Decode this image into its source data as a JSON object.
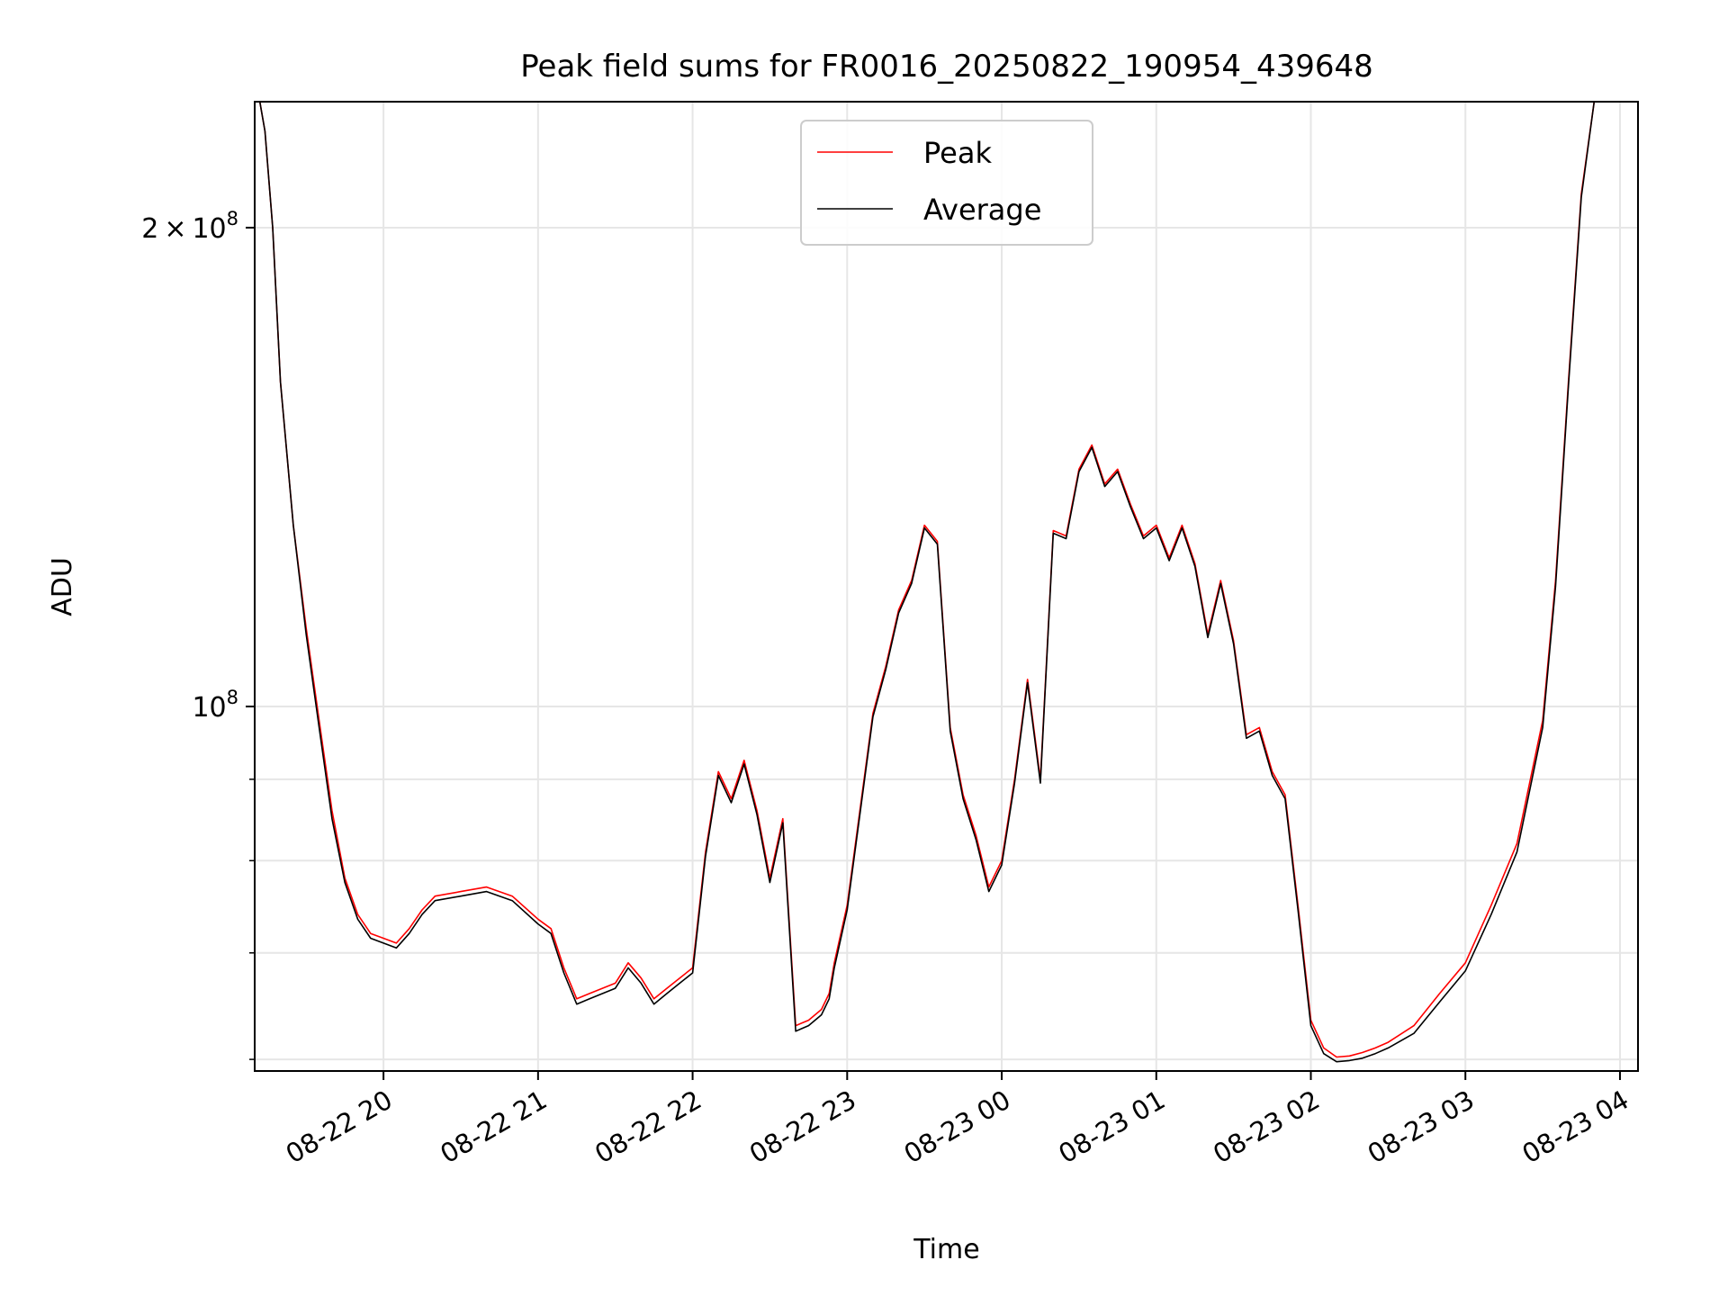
{
  "chart_data": {
    "type": "line",
    "title": "Peak field sums for FR0016_20250822_190954_439648",
    "xlabel": "Time",
    "ylabel": "ADU",
    "yscale": "log",
    "ylim": [
      59000000,
      240000000
    ],
    "xlim": [
      "2025-08-22 19:10",
      "2025-08-23 04:07"
    ],
    "x_ticks": [
      "08-22 20",
      "08-22 21",
      "08-22 22",
      "08-22 23",
      "08-23 00",
      "08-23 01",
      "08-23 02",
      "08-23 03",
      "08-23 04"
    ],
    "y_tick_labels": [
      {
        "base": "2",
        "times": "×",
        "mantissa": "10",
        "exp": "8",
        "value": 200000000
      },
      {
        "base": "",
        "times": "",
        "mantissa": "10",
        "exp": "8",
        "value": 100000000
      }
    ],
    "y_minor_ticks": [
      60000000,
      70000000,
      80000000,
      90000000
    ],
    "grid": true,
    "legend_position": "top-center",
    "colors": {
      "peak": "#ff0000",
      "average": "#000000"
    },
    "series": [
      {
        "name": "Peak",
        "x": [
          "2025-08-22 19:10",
          "2025-08-22 19:12",
          "2025-08-22 19:14",
          "2025-08-22 19:17",
          "2025-08-22 19:20",
          "2025-08-22 19:25",
          "2025-08-22 19:30",
          "2025-08-22 19:35",
          "2025-08-22 19:40",
          "2025-08-22 19:45",
          "2025-08-22 19:50",
          "2025-08-22 19:55",
          "2025-08-22 20:00",
          "2025-08-22 20:05",
          "2025-08-22 20:10",
          "2025-08-22 20:15",
          "2025-08-22 20:20",
          "2025-08-22 20:30",
          "2025-08-22 20:40",
          "2025-08-22 20:50",
          "2025-08-22 21:00",
          "2025-08-22 21:05",
          "2025-08-22 21:10",
          "2025-08-22 21:15",
          "2025-08-22 21:20",
          "2025-08-22 21:30",
          "2025-08-22 21:35",
          "2025-08-22 21:40",
          "2025-08-22 21:45",
          "2025-08-22 21:50",
          "2025-08-22 21:55",
          "2025-08-22 22:00",
          "2025-08-22 22:05",
          "2025-08-22 22:10",
          "2025-08-22 22:15",
          "2025-08-22 22:20",
          "2025-08-22 22:25",
          "2025-08-22 22:30",
          "2025-08-22 22:35",
          "2025-08-22 22:40",
          "2025-08-22 22:45",
          "2025-08-22 22:50",
          "2025-08-22 22:53",
          "2025-08-22 22:55",
          "2025-08-22 23:00",
          "2025-08-22 23:10",
          "2025-08-22 23:15",
          "2025-08-22 23:20",
          "2025-08-22 23:25",
          "2025-08-22 23:30",
          "2025-08-22 23:35",
          "2025-08-22 23:40",
          "2025-08-22 23:45",
          "2025-08-22 23:50",
          "2025-08-22 23:55",
          "2025-08-23 00:00",
          "2025-08-23 00:05",
          "2025-08-23 00:10",
          "2025-08-23 00:15",
          "2025-08-23 00:20",
          "2025-08-23 00:25",
          "2025-08-23 00:30",
          "2025-08-23 00:35",
          "2025-08-23 00:40",
          "2025-08-23 00:45",
          "2025-08-23 00:50",
          "2025-08-23 00:55",
          "2025-08-23 01:00",
          "2025-08-23 01:05",
          "2025-08-23 01:10",
          "2025-08-23 01:15",
          "2025-08-23 01:20",
          "2025-08-23 01:25",
          "2025-08-23 01:30",
          "2025-08-23 01:35",
          "2025-08-23 01:40",
          "2025-08-23 01:45",
          "2025-08-23 01:50",
          "2025-08-23 01:55",
          "2025-08-23 02:00",
          "2025-08-23 02:05",
          "2025-08-23 02:10",
          "2025-08-23 02:15",
          "2025-08-23 02:20",
          "2025-08-23 02:25",
          "2025-08-23 02:30",
          "2025-08-23 02:40",
          "2025-08-23 02:50",
          "2025-08-23 03:00",
          "2025-08-23 03:10",
          "2025-08-23 03:20",
          "2025-08-23 03:30",
          "2025-08-23 03:35",
          "2025-08-23 03:40",
          "2025-08-23 03:45",
          "2025-08-23 03:50",
          "2025-08-23 03:55",
          "2025-08-23 04:00"
        ],
        "y": [
          240000000,
          240000000,
          230000000,
          200000000,
          160000000,
          130000000,
          112000000,
          98000000,
          86000000,
          78000000,
          74000000,
          72000000,
          71500000,
          71000000,
          72500000,
          74500000,
          76000000,
          76500000,
          77000000,
          76000000,
          73500000,
          72500000,
          68500000,
          65500000,
          66000000,
          67000000,
          69000000,
          67500000,
          65500000,
          66500000,
          67500000,
          68500000,
          81000000,
          91000000,
          87500000,
          92500000,
          86000000,
          78000000,
          85000000,
          63000000,
          63500000,
          64500000,
          66000000,
          69000000,
          75000000,
          99000000,
          106000000,
          115000000,
          120000000,
          130000000,
          127000000,
          97000000,
          88000000,
          83000000,
          77000000,
          80000000,
          90000000,
          104000000,
          90000000,
          129000000,
          128000000,
          141000000,
          146000000,
          138000000,
          141000000,
          134000000,
          128000000,
          130000000,
          124000000,
          130000000,
          123000000,
          111000000,
          120000000,
          110000000,
          96000000,
          97000000,
          91000000,
          88000000,
          75000000,
          63500000,
          61000000,
          60200000,
          60300000,
          60600000,
          61000000,
          61500000,
          63000000,
          66000000,
          69000000,
          75000000,
          82000000,
          98000000,
          120000000,
          160000000,
          210000000,
          240000000,
          240000000,
          240000000
        ]
      },
      {
        "name": "Average",
        "x": [
          "2025-08-22 19:10",
          "2025-08-22 19:12",
          "2025-08-22 19:14",
          "2025-08-22 19:17",
          "2025-08-22 19:20",
          "2025-08-22 19:25",
          "2025-08-22 19:30",
          "2025-08-22 19:35",
          "2025-08-22 19:40",
          "2025-08-22 19:45",
          "2025-08-22 19:50",
          "2025-08-22 19:55",
          "2025-08-22 20:00",
          "2025-08-22 20:05",
          "2025-08-22 20:10",
          "2025-08-22 20:15",
          "2025-08-22 20:20",
          "2025-08-22 20:30",
          "2025-08-22 20:40",
          "2025-08-22 20:50",
          "2025-08-22 21:00",
          "2025-08-22 21:05",
          "2025-08-22 21:10",
          "2025-08-22 21:15",
          "2025-08-22 21:20",
          "2025-08-22 21:30",
          "2025-08-22 21:35",
          "2025-08-22 21:40",
          "2025-08-22 21:45",
          "2025-08-22 21:50",
          "2025-08-22 21:55",
          "2025-08-22 22:00",
          "2025-08-22 22:05",
          "2025-08-22 22:10",
          "2025-08-22 22:15",
          "2025-08-22 22:20",
          "2025-08-22 22:25",
          "2025-08-22 22:30",
          "2025-08-22 22:35",
          "2025-08-22 22:40",
          "2025-08-22 22:45",
          "2025-08-22 22:50",
          "2025-08-22 22:53",
          "2025-08-22 22:55",
          "2025-08-22 23:00",
          "2025-08-22 23:10",
          "2025-08-22 23:15",
          "2025-08-22 23:20",
          "2025-08-22 23:25",
          "2025-08-22 23:30",
          "2025-08-22 23:35",
          "2025-08-22 23:40",
          "2025-08-22 23:45",
          "2025-08-22 23:50",
          "2025-08-22 23:55",
          "2025-08-23 00:00",
          "2025-08-23 00:05",
          "2025-08-23 00:10",
          "2025-08-23 00:15",
          "2025-08-23 00:20",
          "2025-08-23 00:25",
          "2025-08-23 00:30",
          "2025-08-23 00:35",
          "2025-08-23 00:40",
          "2025-08-23 00:45",
          "2025-08-23 00:50",
          "2025-08-23 00:55",
          "2025-08-23 01:00",
          "2025-08-23 01:05",
          "2025-08-23 01:10",
          "2025-08-23 01:15",
          "2025-08-23 01:20",
          "2025-08-23 01:25",
          "2025-08-23 01:30",
          "2025-08-23 01:35",
          "2025-08-23 01:40",
          "2025-08-23 01:45",
          "2025-08-23 01:50",
          "2025-08-23 01:55",
          "2025-08-23 02:00",
          "2025-08-23 02:05",
          "2025-08-23 02:10",
          "2025-08-23 02:15",
          "2025-08-23 02:20",
          "2025-08-23 02:25",
          "2025-08-23 02:30",
          "2025-08-23 02:40",
          "2025-08-23 02:50",
          "2025-08-23 03:00",
          "2025-08-23 03:10",
          "2025-08-23 03:20",
          "2025-08-23 03:30",
          "2025-08-23 03:35",
          "2025-08-23 03:40",
          "2025-08-23 03:45",
          "2025-08-23 03:50",
          "2025-08-23 03:55",
          "2025-08-23 04:00"
        ],
        "y": [
          240000000,
          240000000,
          230000000,
          200000000,
          160000000,
          130000000,
          111000000,
          97000000,
          85000000,
          77500000,
          73500000,
          71500000,
          71000000,
          70500000,
          72000000,
          74000000,
          75500000,
          76000000,
          76500000,
          75500000,
          73000000,
          72000000,
          68000000,
          65000000,
          65500000,
          66500000,
          68500000,
          67000000,
          65000000,
          66000000,
          67000000,
          68000000,
          80500000,
          90500000,
          87000000,
          92000000,
          85500000,
          77500000,
          84500000,
          62500000,
          63000000,
          64000000,
          65500000,
          68500000,
          74500000,
          98500000,
          105500000,
          114500000,
          119500000,
          129500000,
          126500000,
          96500000,
          87500000,
          82500000,
          76500000,
          79500000,
          89500000,
          103500000,
          89500000,
          128500000,
          127500000,
          140500000,
          145500000,
          137500000,
          140500000,
          133500000,
          127500000,
          129500000,
          123500000,
          129500000,
          122500000,
          110500000,
          119500000,
          109500000,
          95500000,
          96500000,
          90500000,
          87500000,
          74500000,
          63000000,
          60500000,
          59800000,
          59900000,
          60100000,
          60500000,
          61000000,
          62300000,
          65200000,
          68200000,
          74000000,
          81000000,
          97000000,
          119000000,
          159000000,
          209000000,
          240000000,
          240000000,
          240000000
        ]
      }
    ]
  }
}
